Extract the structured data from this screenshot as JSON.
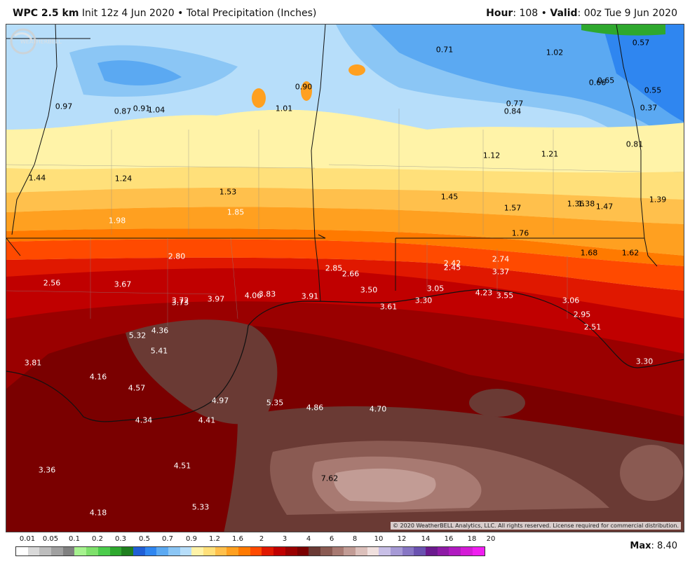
{
  "header": {
    "model": "WPC 2.5 km",
    "init": "Init 12z 4 Jun 2020",
    "bullet": "•",
    "product": "Total Precipitation (Inches)",
    "hour_label": "Hour",
    "hour_value": ": 108",
    "valid_label": "Valid",
    "valid_value": ": 00z Tue 9 Jun 2020"
  },
  "map": {
    "labels": [
      {
        "text": "0.71",
        "c": "dark"
      },
      {
        "text": "1.02",
        "c": "dark"
      },
      {
        "text": "0.57",
        "c": "light"
      },
      {
        "text": "0.65",
        "c": "light"
      },
      {
        "text": "0.66",
        "c": "light"
      },
      {
        "text": "0.55",
        "c": "light"
      },
      {
        "text": "0.77",
        "c": "dark"
      },
      {
        "text": "0.84",
        "c": "dark"
      },
      {
        "text": "0.37",
        "c": "light"
      },
      {
        "text": "0.81",
        "c": "dark"
      },
      {
        "text": "0.90",
        "c": "dark"
      },
      {
        "text": "0.97",
        "c": "dark"
      },
      {
        "text": "0.87",
        "c": "dark"
      },
      {
        "text": "0.91",
        "c": "dark"
      },
      {
        "text": "1.04",
        "c": "dark"
      },
      {
        "text": "1.01",
        "c": "dark"
      },
      {
        "text": "1.12",
        "c": "dark"
      },
      {
        "text": "1.21",
        "c": "dark"
      },
      {
        "text": "1.44",
        "c": "dark"
      },
      {
        "text": "1.24",
        "c": "dark"
      },
      {
        "text": "1.53",
        "c": "dark"
      },
      {
        "text": "1.45",
        "c": "dark"
      },
      {
        "text": "1.57",
        "c": "dark"
      },
      {
        "text": "1.36",
        "c": "dark"
      },
      {
        "text": "1.38",
        "c": "dark"
      },
      {
        "text": "1.47",
        "c": "dark"
      },
      {
        "text": "1.39",
        "c": "dark"
      },
      {
        "text": "1.85",
        "c": "light"
      },
      {
        "text": "1.98",
        "c": "light"
      },
      {
        "text": "1.76",
        "c": "dark"
      },
      {
        "text": "1.68",
        "c": "dark"
      },
      {
        "text": "1.62",
        "c": "dark"
      },
      {
        "text": "2.80",
        "c": "light"
      },
      {
        "text": "2.42",
        "c": "light"
      },
      {
        "text": "2.45",
        "c": "light"
      },
      {
        "text": "2.74",
        "c": "light"
      },
      {
        "text": "3.37",
        "c": "light"
      },
      {
        "text": "2.85",
        "c": "light"
      },
      {
        "text": "2.66",
        "c": "light"
      },
      {
        "text": "2.56",
        "c": "light"
      },
      {
        "text": "3.67",
        "c": "light"
      },
      {
        "text": "3.50",
        "c": "light"
      },
      {
        "text": "3.05",
        "c": "light"
      },
      {
        "text": "4.23",
        "c": "light"
      },
      {
        "text": "3.55",
        "c": "light"
      },
      {
        "text": "3.72",
        "c": "light"
      },
      {
        "text": "3.73",
        "c": "light"
      },
      {
        "text": "3.97",
        "c": "light"
      },
      {
        "text": "4.06",
        "c": "light"
      },
      {
        "text": "3.83",
        "c": "light"
      },
      {
        "text": "3.91",
        "c": "light"
      },
      {
        "text": "3.61",
        "c": "light"
      },
      {
        "text": "3.30",
        "c": "light"
      },
      {
        "text": "3.06",
        "c": "light"
      },
      {
        "text": "2.95",
        "c": "light"
      },
      {
        "text": "2.51",
        "c": "light"
      },
      {
        "text": "4.36",
        "c": "light"
      },
      {
        "text": "5.32",
        "c": "light"
      },
      {
        "text": "5.41",
        "c": "light"
      },
      {
        "text": "3.81",
        "c": "light"
      },
      {
        "text": "4.16",
        "c": "light"
      },
      {
        "text": "4.57",
        "c": "light"
      },
      {
        "text": "4.97",
        "c": "light"
      },
      {
        "text": "5.35",
        "c": "light"
      },
      {
        "text": "4.86",
        "c": "light"
      },
      {
        "text": "4.70",
        "c": "light"
      },
      {
        "text": "3.30",
        "c": "light"
      },
      {
        "text": "4.34",
        "c": "light"
      },
      {
        "text": "4.41",
        "c": "light"
      },
      {
        "text": "3.36",
        "c": "light"
      },
      {
        "text": "4.51",
        "c": "light"
      },
      {
        "text": "7.62",
        "c": "dark"
      },
      {
        "text": "5.33",
        "c": "light"
      },
      {
        "text": "4.18",
        "c": "light"
      }
    ],
    "copyright": "© 2020 WeatherBELL Analytics, LLC. All rights reserved. License required for commercial distribution.",
    "logo_text": "WEATHERBELL"
  },
  "scale": {
    "ticks": [
      "0.01",
      "0.05",
      "0.1",
      "0.2",
      "0.3",
      "0.5",
      "0.7",
      "0.9",
      "1.2",
      "1.6",
      "2",
      "3",
      "4",
      "6",
      "8",
      "10",
      "12",
      "14",
      "16",
      "18",
      "20"
    ],
    "colors": [
      "#ffffff",
      "#d9d9d9",
      "#bdbdbd",
      "#a0a0a0",
      "#808080",
      "#a6f28f",
      "#7ee06b",
      "#4ccc4c",
      "#2ea82e",
      "#1f7f1f",
      "#1f5fd6",
      "#2f86f0",
      "#5ba9f2",
      "#8bc6f5",
      "#b7defa",
      "#fff3a8",
      "#ffe07a",
      "#ffc04c",
      "#ffa020",
      "#ff7a00",
      "#ff4a00",
      "#e01800",
      "#c00000",
      "#9a0000",
      "#7a0000",
      "#6a3a34",
      "#8a5a52",
      "#a87a72",
      "#c29c95",
      "#dcc0bb",
      "#f0e0de",
      "#c8bfe6",
      "#a69ad6",
      "#8776c4",
      "#6a52b0",
      "#6b1a8e",
      "#8e1aa6",
      "#b01ac0",
      "#d41ad6",
      "#f01ef0"
    ],
    "max_label": "Max",
    "max_value": ": 8.40"
  }
}
